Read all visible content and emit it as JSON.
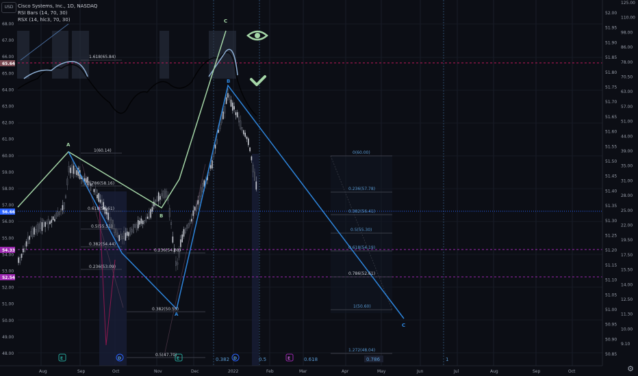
{
  "header": {
    "currency": "USD",
    "symbol_line": "Cisco Systems, Inc., 1D, NASDAQ",
    "indicator1": "RSI Bars (14, 70, 30)",
    "indicator2": "RSX (14, hlc3, 70, 30)"
  },
  "left_axis": {
    "ticks": [
      "68.00",
      "67.00",
      "66.00",
      "65.00",
      "64.00",
      "63.00",
      "62.00",
      "61.00",
      "60.00",
      "59.00",
      "58.00",
      "57.00",
      "56.00",
      "55.00",
      "54.00",
      "53.00",
      "52.00",
      "51.00",
      "50.00",
      "49.00",
      "48.00"
    ],
    "badges": [
      {
        "label": "65.64",
        "color": "#7a4a52"
      },
      {
        "label": "56.66",
        "color": "#2962ff"
      },
      {
        "label": "54.33",
        "color": "#9c27b0"
      },
      {
        "label": "52.54",
        "color": "#9c27b0"
      }
    ]
  },
  "right_axis": {
    "ticks1": [
      "52.00",
      "51.95",
      "51.90",
      "51.85",
      "51.80",
      "51.75",
      "51.70",
      "51.65",
      "51.60",
      "51.55",
      "51.50",
      "51.45",
      "51.40",
      "51.35",
      "51.30",
      "51.25",
      "51.20",
      "51.15",
      "51.10",
      "51.05",
      "51.00",
      "50.95",
      "50.90",
      "50.85"
    ],
    "ticks2": [
      "125.00",
      "110.00",
      "98.00",
      "86.00",
      "78.00",
      "70.50",
      "63.00",
      "57.00",
      "51.00",
      "44.00",
      "39.00",
      "35.00",
      "31.00",
      "28.00",
      "25.00",
      "22.00",
      "19.50",
      "17.50",
      "15.50",
      "14.00",
      "12.50",
      "11.30",
      "10.00",
      "9.10"
    ]
  },
  "x_axis": {
    "ticks": [
      "Aug",
      "Sep",
      "Oct",
      "Nov",
      "Dec",
      "2022",
      "Feb",
      "Mar",
      "Apr",
      "May",
      "Jun",
      "Jul",
      "Aug",
      "Sep",
      "Oct"
    ]
  },
  "wave_labels": {
    "a1": "A",
    "b1": "B",
    "a2": "A",
    "c_top": "C",
    "b2": "B",
    "c_end": "C"
  },
  "fib_left": [
    {
      "label": "1.618(65.84)"
    },
    {
      "label": "1(60.14)"
    },
    {
      "label": "0.786(58.16)"
    },
    {
      "label": "0.618(56.61)"
    },
    {
      "label": "0.5(55.51)"
    },
    {
      "label": "0.382(54.44)"
    },
    {
      "label": "0.236(53.09)"
    }
  ],
  "fib_mid": [
    {
      "label": "0.236(54.08)"
    },
    {
      "label": "0.382(50.55)"
    },
    {
      "label": "0.5(47.70)"
    }
  ],
  "fib_right": [
    {
      "label": "0(60.00)"
    },
    {
      "label": "0.236(57.78)"
    },
    {
      "label": "0.382(56.41)"
    },
    {
      "label": "0.5(55.30)"
    },
    {
      "label": "0.618(54.19)"
    },
    {
      "label": "0.786(52.61)"
    },
    {
      "label": "1(50.60)"
    },
    {
      "label": "1.272(48.04)"
    }
  ],
  "bottom_fib_ratios": [
    "0.382",
    "0.5",
    "0.618",
    "0.786",
    "1"
  ],
  "event_markers": [
    "E",
    "D",
    "E",
    "D",
    "E"
  ],
  "colors": {
    "background": "#0c0e15",
    "wave_green": "#a5d6a7",
    "wave_blue": "#2e86de",
    "magenta_dash": "#c2185b",
    "blue_dot": "#2962ff",
    "purple_dash": "#9c27b0"
  },
  "icons": [
    "eye-icon",
    "check-icon",
    "settings-icon"
  ]
}
